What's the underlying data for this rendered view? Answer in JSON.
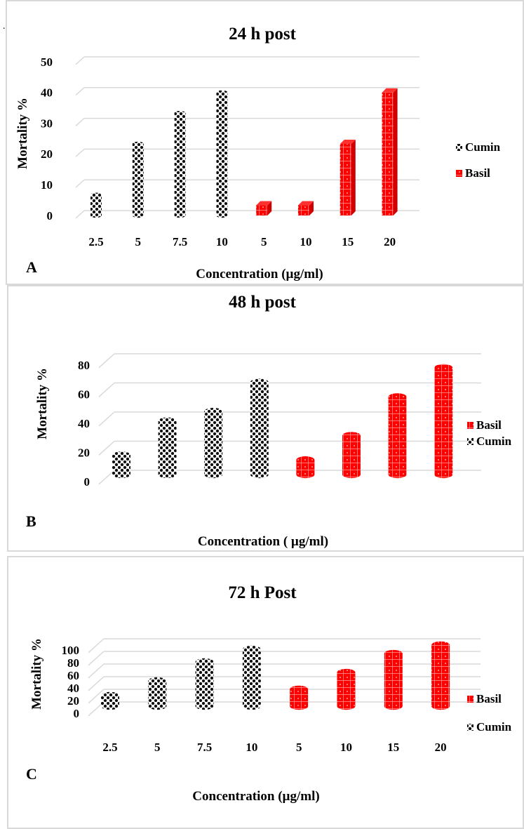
{
  "colors": {
    "cumin": "#111111",
    "basil": "#ff0000",
    "grid": "#d9d9d9"
  },
  "stray_mark": ".",
  "chart_data": [
    {
      "type": "bar",
      "panel_label": "A",
      "title": "24 h post",
      "xlabel": "Concentration (µg/ml)",
      "ylabel": "Mortality %",
      "ylim": [
        0,
        50
      ],
      "yticks": [
        "0",
        "10",
        "20",
        "30",
        "40",
        "50"
      ],
      "grid": true,
      "legend_position": "right",
      "legend": [
        "Cumin",
        "Basil"
      ],
      "categories": [
        "2.5",
        "5",
        "7.5",
        "10",
        "5",
        "10",
        "15",
        "20"
      ],
      "series": [
        {
          "name": "Cumin",
          "values": [
            6.7,
            23.3,
            33.3,
            40,
            null,
            null,
            null,
            null
          ]
        },
        {
          "name": "Basil",
          "values": [
            null,
            null,
            null,
            null,
            3.3,
            3.3,
            23.3,
            40
          ]
        }
      ]
    },
    {
      "type": "bar",
      "panel_label": "B",
      "title": "48 h post",
      "xlabel": "Concentration ( µg/ml)",
      "ylabel": "Mortality %",
      "ylim": [
        0,
        80
      ],
      "yticks": [
        "0",
        "20",
        "40",
        "60",
        "80"
      ],
      "grid": true,
      "legend_position": "right",
      "legend": [
        "Basil",
        "Cumin"
      ],
      "categories": [
        "2.5",
        "5",
        "7.5",
        "10",
        "5",
        "10",
        "15",
        "20"
      ],
      "series": [
        {
          "name": "Cumin",
          "values": [
            13.3,
            36.7,
            43.3,
            63.3,
            null,
            null,
            null,
            null
          ]
        },
        {
          "name": "Basil",
          "values": [
            null,
            null,
            null,
            null,
            10,
            26.7,
            53.3,
            73.3
          ]
        }
      ]
    },
    {
      "type": "bar",
      "panel_label": "C",
      "title": "72 h Post",
      "xlabel": "Concentration (µg/ml)",
      "ylabel": "Mortality %",
      "ylim": [
        0,
        100
      ],
      "yticks": [
        "0",
        "20",
        "40",
        "60",
        "80",
        "100"
      ],
      "grid": true,
      "legend_position": "right",
      "legend": [
        "Basil",
        "Cumin"
      ],
      "categories": [
        "2.5",
        "5",
        "7.5",
        "10",
        "5",
        "10",
        "15",
        "20"
      ],
      "series": [
        {
          "name": "Cumin",
          "values": [
            16.7,
            40,
            70,
            90,
            null,
            null,
            null,
            null
          ]
        },
        {
          "name": "Basil",
          "values": [
            null,
            null,
            null,
            null,
            26.7,
            53.3,
            83.3,
            96.7
          ]
        }
      ]
    }
  ]
}
